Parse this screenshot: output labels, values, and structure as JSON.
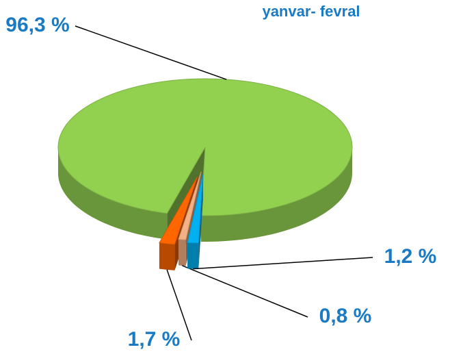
{
  "chart_data": {
    "type": "pie",
    "title": "yanvar- fevral",
    "categories": [
      null,
      null,
      null,
      null
    ],
    "values": [
      96.3,
      1.7,
      0.8,
      1.2
    ],
    "value_labels": [
      "96,3 %",
      "1,7 %",
      "0,8 %",
      "1,2 %"
    ],
    "colors": [
      "#92d050",
      "#ff6600",
      "#f4b183",
      "#00b0f0"
    ]
  }
}
